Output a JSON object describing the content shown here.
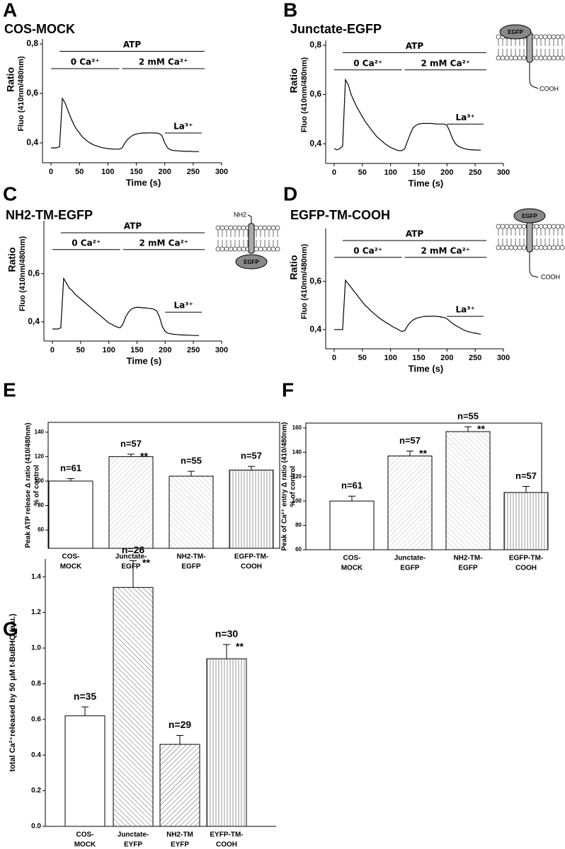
{
  "chart_data": [
    {
      "type": "line",
      "panel_label": "A",
      "title": "COS-MOCK",
      "xlabel": "Time (s)",
      "ylabel": "Ratio",
      "ylabel2": "Fluo (410nm/480nm)",
      "annotations": [
        "ATP",
        "0 Ca²⁺",
        "2 mM Ca²⁺",
        "La³⁺"
      ],
      "color": "#000000",
      "x": [
        0,
        5,
        10,
        15,
        20,
        25,
        30,
        35,
        40,
        45,
        50,
        55,
        60,
        65,
        70,
        75,
        80,
        85,
        90,
        95,
        100,
        105,
        110,
        115,
        120,
        125,
        130,
        135,
        140,
        145,
        150,
        155,
        160,
        165,
        170,
        175,
        180,
        185,
        190,
        195,
        200,
        205,
        210,
        215,
        220,
        225,
        230,
        235,
        240,
        245,
        250,
        255,
        260
      ],
      "values": [
        0.38,
        0.38,
        0.38,
        0.385,
        0.58,
        0.56,
        0.53,
        0.5,
        0.475,
        0.455,
        0.44,
        0.425,
        0.415,
        0.405,
        0.398,
        0.392,
        0.388,
        0.384,
        0.381,
        0.379,
        0.377,
        0.376,
        0.375,
        0.375,
        0.375,
        0.38,
        0.4,
        0.415,
        0.425,
        0.432,
        0.436,
        0.438,
        0.44,
        0.44,
        0.44,
        0.441,
        0.44,
        0.44,
        0.438,
        0.43,
        0.4,
        0.38,
        0.372,
        0.37,
        0.368,
        0.368,
        0.367,
        0.366,
        0.366,
        0.366,
        0.365,
        0.365,
        0.365
      ],
      "xlim": [
        -15,
        300
      ],
      "xticks": [
        0,
        50,
        100,
        150,
        200,
        250,
        300
      ],
      "ylim": [
        0.32,
        0.82
      ],
      "yticks": [
        {
          "value": 0.4,
          "label": "0,4"
        },
        {
          "value": 0.6,
          "label": "0,6"
        },
        {
          "value": 0.8,
          "label": "0,8"
        }
      ]
    },
    {
      "type": "line",
      "panel_label": "B",
      "title": "Junctate-EGFP",
      "xlabel": "Time (s)",
      "ylabel": "Ratio",
      "ylabel2": "Fluo (410nm/480nm)",
      "annotations": [
        "ATP",
        "0 Ca²⁺",
        "2 mM Ca²⁺",
        "La³⁺"
      ],
      "schematic_labels": [
        "EGFP",
        "COOH"
      ],
      "color": "#000000",
      "x": [
        0,
        5,
        10,
        15,
        20,
        25,
        30,
        35,
        40,
        45,
        50,
        55,
        60,
        65,
        70,
        75,
        80,
        85,
        90,
        95,
        100,
        105,
        110,
        115,
        120,
        125,
        130,
        135,
        140,
        145,
        150,
        155,
        160,
        165,
        170,
        175,
        180,
        185,
        190,
        195,
        200,
        205,
        210,
        215,
        220,
        225,
        230,
        235,
        240,
        245,
        250,
        255,
        260
      ],
      "values": [
        0.38,
        0.375,
        0.38,
        0.39,
        0.66,
        0.64,
        0.6,
        0.575,
        0.55,
        0.53,
        0.51,
        0.49,
        0.475,
        0.46,
        0.445,
        0.43,
        0.42,
        0.41,
        0.4,
        0.392,
        0.385,
        0.38,
        0.375,
        0.372,
        0.372,
        0.38,
        0.41,
        0.44,
        0.465,
        0.475,
        0.48,
        0.482,
        0.483,
        0.482,
        0.483,
        0.482,
        0.48,
        0.48,
        0.48,
        0.48,
        0.475,
        0.45,
        0.42,
        0.4,
        0.39,
        0.385,
        0.38,
        0.378,
        0.376,
        0.375,
        0.375,
        0.374,
        0.374
      ],
      "xlim": [
        -15,
        300
      ],
      "xticks": [
        0,
        50,
        100,
        150,
        200,
        250,
        300
      ],
      "ylim": [
        0.32,
        0.82
      ],
      "yticks": [
        {
          "value": 0.4,
          "label": "0,4"
        },
        {
          "value": 0.6,
          "label": "0,6"
        },
        {
          "value": 0.8,
          "label": "0,8"
        }
      ]
    },
    {
      "type": "line",
      "panel_label": "C",
      "title": "NH2-TM-EGFP",
      "xlabel": "Time (s)",
      "ylabel": "Ratio",
      "ylabel2": "Fluo (410nm/480nm)",
      "annotations": [
        "ATP",
        "0 Ca²⁺",
        "2 mM Ca²⁺",
        "La³⁺"
      ],
      "schematic_labels": [
        "NH2",
        "EGFP"
      ],
      "color": "#000000",
      "x": [
        0,
        5,
        10,
        15,
        20,
        25,
        30,
        35,
        40,
        45,
        50,
        55,
        60,
        65,
        70,
        75,
        80,
        85,
        90,
        95,
        100,
        105,
        110,
        115,
        120,
        125,
        130,
        135,
        140,
        145,
        150,
        155,
        160,
        165,
        170,
        175,
        180,
        185,
        190,
        195,
        200,
        205,
        210,
        215,
        220,
        225,
        230,
        235,
        240,
        245,
        250,
        255,
        260
      ],
      "values": [
        0.37,
        0.37,
        0.37,
        0.375,
        0.58,
        0.56,
        0.54,
        0.53,
        0.515,
        0.505,
        0.495,
        0.485,
        0.475,
        0.465,
        0.455,
        0.445,
        0.435,
        0.425,
        0.415,
        0.405,
        0.395,
        0.39,
        0.383,
        0.378,
        0.375,
        0.39,
        0.42,
        0.44,
        0.452,
        0.458,
        0.46,
        0.46,
        0.458,
        0.458,
        0.456,
        0.455,
        0.452,
        0.445,
        0.42,
        0.38,
        0.36,
        0.352,
        0.35,
        0.348,
        0.347,
        0.346,
        0.345,
        0.345,
        0.344,
        0.344,
        0.343,
        0.343,
        0.343
      ],
      "xlim": [
        -15,
        300
      ],
      "xticks": [
        0,
        50,
        100,
        150,
        200,
        250,
        300
      ],
      "ylim": [
        0.32,
        0.82
      ],
      "yticks": [
        {
          "value": 0.4,
          "label": "0,4"
        },
        {
          "value": 0.6,
          "label": "0,6"
        }
      ]
    },
    {
      "type": "line",
      "panel_label": "D",
      "title": "EGFP-TM-COOH",
      "xlabel": "Time (s)",
      "ylabel": "Ratio",
      "ylabel2": "Fluo (410nm/480nm)",
      "annotations": [
        "ATP",
        "0 Ca²⁺",
        "2 mM Ca²⁺",
        "La³⁺"
      ],
      "schematic_labels": [
        "EGFP",
        "COOH"
      ],
      "color": "#000000",
      "x": [
        0,
        5,
        10,
        15,
        20,
        25,
        30,
        35,
        40,
        45,
        50,
        55,
        60,
        65,
        70,
        75,
        80,
        85,
        90,
        95,
        100,
        105,
        110,
        115,
        120,
        125,
        130,
        135,
        140,
        145,
        150,
        155,
        160,
        165,
        170,
        175,
        180,
        185,
        190,
        195,
        200,
        205,
        210,
        215,
        220,
        225,
        230,
        235,
        240,
        245,
        250,
        255,
        260
      ],
      "values": [
        0.4,
        0.4,
        0.4,
        0.4,
        0.605,
        0.59,
        0.575,
        0.56,
        0.545,
        0.53,
        0.515,
        0.5,
        0.49,
        0.478,
        0.468,
        0.458,
        0.448,
        0.44,
        0.432,
        0.425,
        0.418,
        0.41,
        0.405,
        0.398,
        0.392,
        0.395,
        0.415,
        0.43,
        0.44,
        0.446,
        0.45,
        0.452,
        0.455,
        0.455,
        0.455,
        0.456,
        0.455,
        0.454,
        0.452,
        0.45,
        0.445,
        0.435,
        0.425,
        0.418,
        0.41,
        0.405,
        0.398,
        0.393,
        0.39,
        0.387,
        0.385,
        0.383,
        0.38
      ],
      "xlim": [
        -15,
        300
      ],
      "xticks": [
        0,
        50,
        100,
        150,
        200,
        250,
        300
      ],
      "ylim": [
        0.32,
        0.82
      ],
      "yticks": [
        {
          "value": 0.4,
          "label": "0,4"
        },
        {
          "value": 0.6,
          "label": "0,6"
        }
      ]
    },
    {
      "type": "bar",
      "panel_label": "E",
      "ylabel": [
        "Peak ATP release Δ ratio (410/480nm)",
        "% of control"
      ],
      "categories": [
        [
          "COS-",
          "MOCK"
        ],
        [
          "Junctate-",
          "EGFP"
        ],
        [
          "NH2-TM-",
          "EGFP"
        ],
        [
          "EGFP-TM-",
          "COOH"
        ]
      ],
      "values": [
        100,
        120,
        104,
        109
      ],
      "errors": [
        2,
        2,
        4,
        3
      ],
      "n_labels": [
        "n=61",
        "n=57",
        "n=55",
        "n=57"
      ],
      "significance": [
        null,
        "**",
        null,
        null
      ],
      "fills": [
        "white",
        "hatch-forward",
        "hatch-back",
        "vertical-lines"
      ],
      "frame": true,
      "ylim": [
        45,
        148
      ],
      "yticks": [
        60,
        80,
        100,
        120,
        140
      ]
    },
    {
      "type": "bar",
      "panel_label": "F",
      "ylabel": [
        "Peak of Ca²⁺ entry Δ ratio (410/480nm)",
        "% of control"
      ],
      "categories": [
        [
          "COS-",
          "MOCK"
        ],
        [
          "Junctate-",
          "EGFP"
        ],
        [
          "NH2-TM-",
          "EGFP"
        ],
        [
          "EGFP-TM-",
          "COOH"
        ]
      ],
      "values": [
        100,
        137,
        157,
        107
      ],
      "errors": [
        4,
        4,
        4,
        5
      ],
      "n_labels": [
        "n=61",
        "n=57",
        "n=55",
        "n=57"
      ],
      "significance": [
        null,
        "**",
        "**",
        null
      ],
      "fills": [
        "white",
        "hatch-forward",
        "hatch-back",
        "vertical-lines"
      ],
      "frame": true,
      "ylim": [
        60,
        164
      ],
      "yticks": [
        60,
        80,
        100,
        120,
        140,
        160
      ]
    },
    {
      "type": "bar",
      "panel_label": "G",
      "ylabel": [
        "total Ca²⁺released by 50 μM t-BuBHQ (a.u.)"
      ],
      "categories": [
        [
          "COS-",
          "MOCK"
        ],
        [
          "Junctate-",
          "EYFP"
        ],
        [
          "NH2-TM",
          "EYFP"
        ],
        [
          "EYFP-TM-",
          "COOH"
        ]
      ],
      "values": [
        0.62,
        1.34,
        0.46,
        0.94
      ],
      "errors": [
        0.05,
        0.15,
        0.05,
        0.08
      ],
      "n_labels": [
        "n=35",
        "n=26",
        "n=29",
        "n=30"
      ],
      "significance": [
        null,
        "**",
        null,
        "**"
      ],
      "fills": [
        "white",
        "hatch-back-dark",
        "hatch-forward-dark",
        "vertical-lines"
      ],
      "frame": false,
      "ylim": [
        0,
        1.5
      ],
      "yticks": [
        {
          "value": 0,
          "label": "0.0"
        },
        0.2,
        0.4,
        0.6,
        0.8,
        {
          "value": 1,
          "label": "1.0"
        },
        1.2,
        1.4
      ]
    }
  ]
}
